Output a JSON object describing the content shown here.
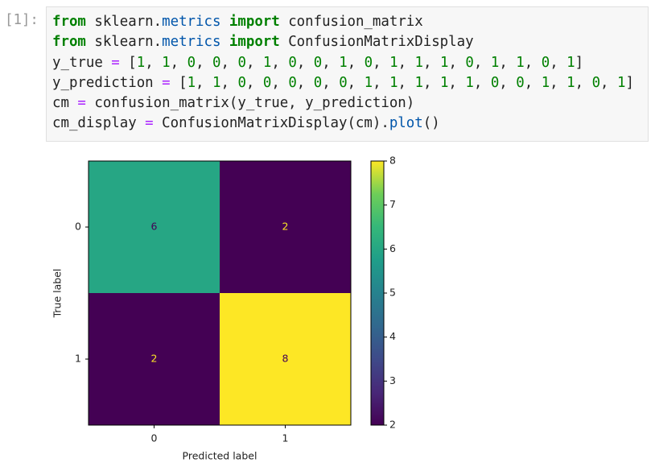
{
  "prompt": "[1]:",
  "code": {
    "lines": [
      [
        {
          "text": "from",
          "style": "kw"
        },
        {
          "text": " sklearn."
        },
        {
          "text": "metrics",
          "style": "attr"
        },
        {
          "text": " "
        },
        {
          "text": "import",
          "style": "kw"
        },
        {
          "text": " confusion_matrix"
        }
      ],
      [
        {
          "text": "from",
          "style": "kw"
        },
        {
          "text": " sklearn."
        },
        {
          "text": "metrics",
          "style": "attr"
        },
        {
          "text": " "
        },
        {
          "text": "import",
          "style": "kw"
        },
        {
          "text": " ConfusionMatrixDisplay"
        }
      ],
      [
        {
          "text": "y_true "
        },
        {
          "text": "=",
          "style": "op"
        },
        {
          "text": " ["
        },
        {
          "text": "1",
          "style": "num"
        },
        {
          "text": ", "
        },
        {
          "text": "1",
          "style": "num"
        },
        {
          "text": ", "
        },
        {
          "text": "0",
          "style": "num"
        },
        {
          "text": ", "
        },
        {
          "text": "0",
          "style": "num"
        },
        {
          "text": ", "
        },
        {
          "text": "0",
          "style": "num"
        },
        {
          "text": ", "
        },
        {
          "text": "1",
          "style": "num"
        },
        {
          "text": ", "
        },
        {
          "text": "0",
          "style": "num"
        },
        {
          "text": ", "
        },
        {
          "text": "0",
          "style": "num"
        },
        {
          "text": ", "
        },
        {
          "text": "1",
          "style": "num"
        },
        {
          "text": ", "
        },
        {
          "text": "0",
          "style": "num"
        },
        {
          "text": ", "
        },
        {
          "text": "1",
          "style": "num"
        },
        {
          "text": ", "
        },
        {
          "text": "1",
          "style": "num"
        },
        {
          "text": ", "
        },
        {
          "text": "1",
          "style": "num"
        },
        {
          "text": ", "
        },
        {
          "text": "0",
          "style": "num"
        },
        {
          "text": ", "
        },
        {
          "text": "1",
          "style": "num"
        },
        {
          "text": ", "
        },
        {
          "text": "1",
          "style": "num"
        },
        {
          "text": ", "
        },
        {
          "text": "0",
          "style": "num"
        },
        {
          "text": ", "
        },
        {
          "text": "1",
          "style": "num"
        },
        {
          "text": "]"
        }
      ],
      [
        {
          "text": "y_prediction "
        },
        {
          "text": "=",
          "style": "op"
        },
        {
          "text": " ["
        },
        {
          "text": "1",
          "style": "num"
        },
        {
          "text": ", "
        },
        {
          "text": "1",
          "style": "num"
        },
        {
          "text": ", "
        },
        {
          "text": "0",
          "style": "num"
        },
        {
          "text": ", "
        },
        {
          "text": "0",
          "style": "num"
        },
        {
          "text": ", "
        },
        {
          "text": "0",
          "style": "num"
        },
        {
          "text": ", "
        },
        {
          "text": "0",
          "style": "num"
        },
        {
          "text": ", "
        },
        {
          "text": "0",
          "style": "num"
        },
        {
          "text": ", "
        },
        {
          "text": "1",
          "style": "num"
        },
        {
          "text": ", "
        },
        {
          "text": "1",
          "style": "num"
        },
        {
          "text": ", "
        },
        {
          "text": "1",
          "style": "num"
        },
        {
          "text": ", "
        },
        {
          "text": "1",
          "style": "num"
        },
        {
          "text": ", "
        },
        {
          "text": "1",
          "style": "num"
        },
        {
          "text": ", "
        },
        {
          "text": "0",
          "style": "num"
        },
        {
          "text": ", "
        },
        {
          "text": "0",
          "style": "num"
        },
        {
          "text": ", "
        },
        {
          "text": "1",
          "style": "num"
        },
        {
          "text": ", "
        },
        {
          "text": "1",
          "style": "num"
        },
        {
          "text": ", "
        },
        {
          "text": "0",
          "style": "num"
        },
        {
          "text": ", "
        },
        {
          "text": "1",
          "style": "num"
        },
        {
          "text": "]"
        }
      ],
      [
        {
          "text": "cm "
        },
        {
          "text": "=",
          "style": "op"
        },
        {
          "text": " confusion_matrix(y_true, y_prediction)"
        }
      ],
      [
        {
          "text": "cm_display "
        },
        {
          "text": "=",
          "style": "op"
        },
        {
          "text": " ConfusionMatrixDisplay(cm)."
        },
        {
          "text": "plot",
          "style": "attr"
        },
        {
          "text": "()"
        }
      ]
    ]
  },
  "chart_data": {
    "type": "heatmap",
    "colormap": "viridis",
    "x_categories": [
      "0",
      "1"
    ],
    "y_categories": [
      "0",
      "1"
    ],
    "values": [
      [
        6,
        2
      ],
      [
        2,
        8
      ]
    ],
    "xlabel": "Predicted label",
    "ylabel": "True label",
    "clim": [
      2,
      8
    ],
    "cticks": [
      2,
      3,
      4,
      5,
      6,
      7,
      8
    ]
  }
}
